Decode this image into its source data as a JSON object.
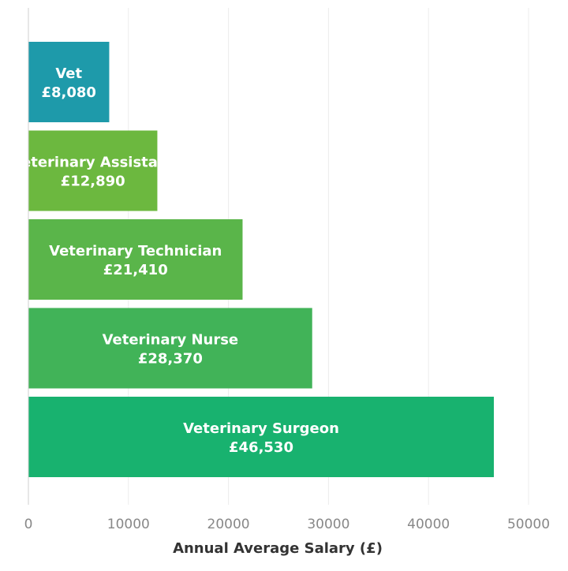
{
  "chart_data": {
    "type": "bar",
    "orientation": "horizontal",
    "categories": [
      "Vet",
      "Veterinary Assistant",
      "Veterinary Technician",
      "Veterinary Nurse",
      "Veterinary Surgeon"
    ],
    "values": [
      8080,
      12890,
      21410,
      28370,
      46530
    ],
    "value_labels": [
      "£8,080",
      "£12,890",
      "£21,410",
      "£28,370",
      "£46,530"
    ],
    "colors": [
      "#1e9aaa",
      "#6cb83f",
      "#5ab54a",
      "#41b358",
      "#18b26f"
    ],
    "xlabel": "Annual Average Salary (£)",
    "xlim": [
      0,
      50000
    ],
    "xticks": [
      0,
      10000,
      20000,
      30000,
      40000,
      50000
    ],
    "xtick_labels": [
      "0",
      "10000",
      "20000",
      "30000",
      "40000",
      "50000"
    ],
    "grid": "vertical",
    "legend": "none"
  }
}
